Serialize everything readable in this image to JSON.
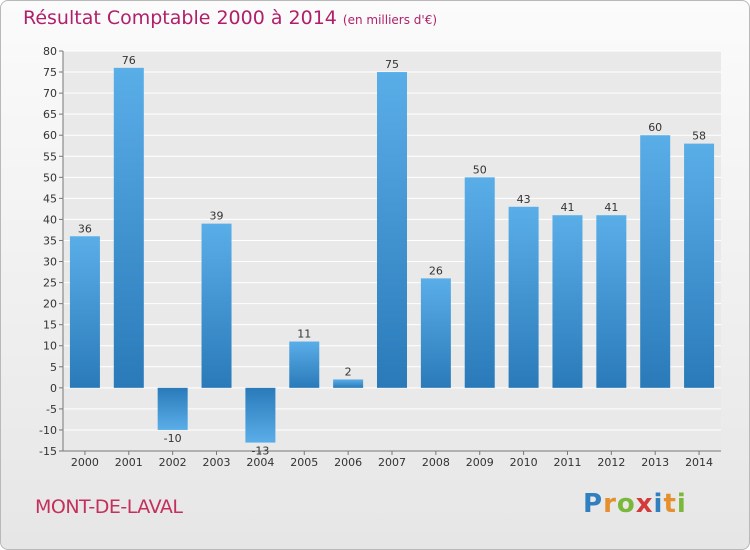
{
  "title": "Résultat Comptable 2000 à 2014",
  "subtitle": "(en milliers d'€)",
  "commune": "MONT-DE-LAVAL",
  "brand": "Proxiti",
  "colors": {
    "title": "#b0206a",
    "bar_light": "#5aaee8",
    "bar_dark": "#2a7ab9",
    "plot_bg": "#e9e9e9",
    "grid": "#ffffff"
  },
  "chart_data": {
    "type": "bar",
    "title": "Résultat Comptable 2000 à 2014",
    "subtitle": "(en milliers d'€)",
    "xlabel": "",
    "ylabel": "",
    "categories": [
      "2000",
      "2001",
      "2002",
      "2003",
      "2004",
      "2005",
      "2006",
      "2007",
      "2008",
      "2009",
      "2010",
      "2011",
      "2012",
      "2013",
      "2014"
    ],
    "values": [
      36,
      76,
      -10,
      39,
      -13,
      11,
      2,
      75,
      26,
      50,
      43,
      41,
      41,
      60,
      58
    ],
    "ylim": [
      -15,
      80
    ],
    "yticks": [
      80,
      75,
      70,
      65,
      60,
      55,
      50,
      45,
      40,
      35,
      30,
      25,
      20,
      15,
      10,
      5,
      0,
      -5,
      -10,
      -15
    ],
    "grid": true,
    "legend": "none"
  }
}
